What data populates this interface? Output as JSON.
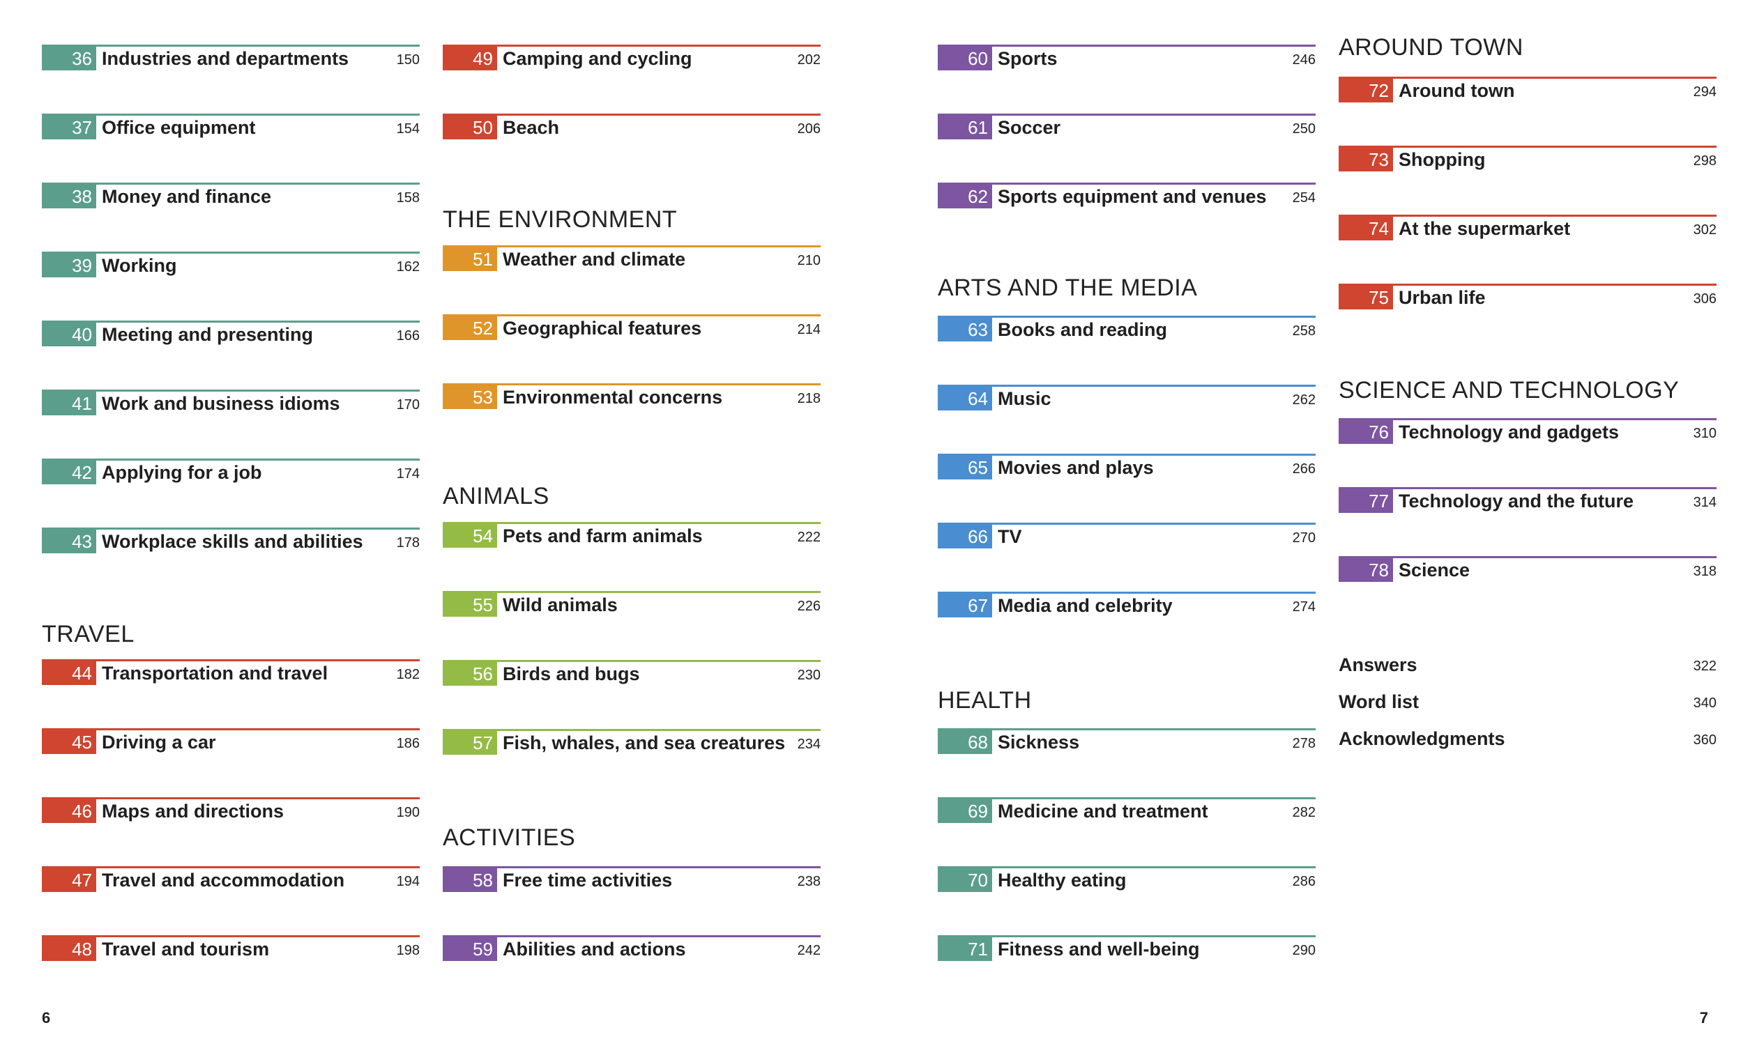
{
  "colors": {
    "teal": "#5b9e8c",
    "red": "#cf4530",
    "orange": "#e0952a",
    "green": "#95bb47",
    "purple": "#7d55a0",
    "blue": "#4a8ed1"
  },
  "columns": [
    {
      "items": [
        {
          "type": "entry",
          "num": "36",
          "title": "Industries and departments",
          "page": "150",
          "color": "teal"
        },
        {
          "type": "entry",
          "num": "37",
          "title": "Office equipment",
          "page": "154",
          "color": "teal"
        },
        {
          "type": "entry",
          "num": "38",
          "title": "Money and finance",
          "page": "158",
          "color": "teal"
        },
        {
          "type": "entry",
          "num": "39",
          "title": "Working",
          "page": "162",
          "color": "teal"
        },
        {
          "type": "entry",
          "num": "40",
          "title": "Meeting and presenting",
          "page": "166",
          "color": "teal"
        },
        {
          "type": "entry",
          "num": "41",
          "title": "Work and business idioms",
          "page": "170",
          "color": "teal"
        },
        {
          "type": "entry",
          "num": "42",
          "title": "Applying for a job",
          "page": "174",
          "color": "teal"
        },
        {
          "type": "entry",
          "num": "43",
          "title": "Workplace skills and abilities",
          "page": "178",
          "color": "teal"
        },
        {
          "type": "section",
          "title": "TRAVEL"
        },
        {
          "type": "entry",
          "num": "44",
          "title": "Transportation and travel",
          "page": "182",
          "color": "red"
        },
        {
          "type": "entry",
          "num": "45",
          "title": "Driving a car",
          "page": "186",
          "color": "red"
        },
        {
          "type": "entry",
          "num": "46",
          "title": "Maps and directions",
          "page": "190",
          "color": "red"
        },
        {
          "type": "entry",
          "num": "47",
          "title": "Travel and accommodation",
          "page": "194",
          "color": "red"
        },
        {
          "type": "entry",
          "num": "48",
          "title": "Travel and tourism",
          "page": "198",
          "color": "red"
        }
      ]
    },
    {
      "items": [
        {
          "type": "entry",
          "num": "49",
          "title": "Camping and cycling",
          "page": "202",
          "color": "red"
        },
        {
          "type": "entry",
          "num": "50",
          "title": "Beach",
          "page": "206",
          "color": "red"
        },
        {
          "type": "section",
          "title": "THE ENVIRONMENT"
        },
        {
          "type": "entry",
          "num": "51",
          "title": "Weather and climate",
          "page": "210",
          "color": "orange"
        },
        {
          "type": "entry",
          "num": "52",
          "title": "Geographical features",
          "page": "214",
          "color": "orange"
        },
        {
          "type": "entry",
          "num": "53",
          "title": "Environmental concerns",
          "page": "218",
          "color": "orange"
        },
        {
          "type": "section",
          "title": "ANIMALS"
        },
        {
          "type": "entry",
          "num": "54",
          "title": "Pets and farm animals",
          "page": "222",
          "color": "green"
        },
        {
          "type": "entry",
          "num": "55",
          "title": "Wild animals",
          "page": "226",
          "color": "green"
        },
        {
          "type": "entry",
          "num": "56",
          "title": "Birds and bugs",
          "page": "230",
          "color": "green"
        },
        {
          "type": "entry",
          "num": "57",
          "title": "Fish, whales, and sea creatures",
          "page": "234",
          "color": "green"
        },
        {
          "type": "section",
          "title": "ACTIVITIES"
        },
        {
          "type": "entry",
          "num": "58",
          "title": "Free time activities",
          "page": "238",
          "color": "purple"
        },
        {
          "type": "entry",
          "num": "59",
          "title": "Abilities and actions",
          "page": "242",
          "color": "purple"
        }
      ]
    },
    {
      "items": [
        {
          "type": "entry",
          "num": "60",
          "title": "Sports",
          "page": "246",
          "color": "purple"
        },
        {
          "type": "entry",
          "num": "61",
          "title": "Soccer",
          "page": "250",
          "color": "purple"
        },
        {
          "type": "entry",
          "num": "62",
          "title": "Sports equipment and venues",
          "page": "254",
          "color": "purple"
        },
        {
          "type": "section",
          "title": "ARTS AND THE MEDIA"
        },
        {
          "type": "entry",
          "num": "63",
          "title": "Books and reading",
          "page": "258",
          "color": "blue"
        },
        {
          "type": "entry",
          "num": "64",
          "title": "Music",
          "page": "262",
          "color": "blue"
        },
        {
          "type": "entry",
          "num": "65",
          "title": "Movies and plays",
          "page": "266",
          "color": "blue"
        },
        {
          "type": "entry",
          "num": "66",
          "title": "TV",
          "page": "270",
          "color": "blue"
        },
        {
          "type": "entry",
          "num": "67",
          "title": "Media and celebrity",
          "page": "274",
          "color": "blue"
        },
        {
          "type": "section",
          "title": "HEALTH"
        },
        {
          "type": "entry",
          "num": "68",
          "title": "Sickness",
          "page": "278",
          "color": "teal"
        },
        {
          "type": "entry",
          "num": "69",
          "title": "Medicine and treatment",
          "page": "282",
          "color": "teal"
        },
        {
          "type": "entry",
          "num": "70",
          "title": "Healthy eating",
          "page": "286",
          "color": "teal"
        },
        {
          "type": "entry",
          "num": "71",
          "title": "Fitness and well-being",
          "page": "290",
          "color": "teal"
        }
      ]
    },
    {
      "items": [
        {
          "type": "section",
          "title": "AROUND TOWN"
        },
        {
          "type": "entry",
          "num": "72",
          "title": "Around town",
          "page": "294",
          "color": "red"
        },
        {
          "type": "entry",
          "num": "73",
          "title": "Shopping",
          "page": "298",
          "color": "red"
        },
        {
          "type": "entry",
          "num": "74",
          "title": "At the supermarket",
          "page": "302",
          "color": "red"
        },
        {
          "type": "entry",
          "num": "75",
          "title": "Urban life",
          "page": "306",
          "color": "red"
        },
        {
          "type": "section",
          "title": "SCIENCE AND TECHNOLOGY"
        },
        {
          "type": "entry",
          "num": "76",
          "title": "Technology and gadgets",
          "page": "310",
          "color": "purple"
        },
        {
          "type": "entry",
          "num": "77",
          "title": "Technology and the future",
          "page": "314",
          "color": "purple"
        },
        {
          "type": "entry",
          "num": "78",
          "title": "Science",
          "page": "318",
          "color": "purple"
        },
        {
          "type": "extra",
          "title": "Answers",
          "page": "322"
        },
        {
          "type": "extra",
          "title": "Word list",
          "page": "340"
        },
        {
          "type": "extra",
          "title": "Acknowledgments",
          "page": "360"
        }
      ]
    }
  ],
  "folios": {
    "left": "6",
    "right": "7"
  }
}
